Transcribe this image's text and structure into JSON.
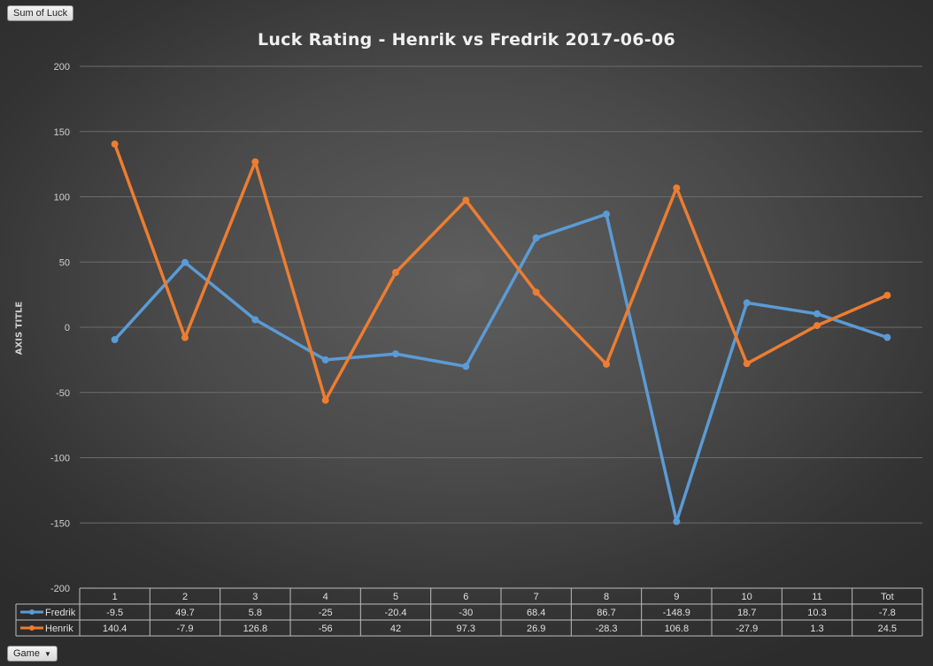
{
  "buttons": {
    "sum_label": "Sum of Luck",
    "game_label": "Game",
    "game_arrow": "▼"
  },
  "colors": {
    "Fredrik": "#5b9bd5",
    "Henrik": "#ed7d31"
  },
  "chart_data": {
    "type": "line",
    "title": "Luck Rating - Henrik vs Fredrik 2017-06-06",
    "xlabel": "",
    "ylabel": "AXIS TITLE",
    "ylim": [
      -200,
      200
    ],
    "yticks": [
      200,
      150,
      100,
      50,
      0,
      -50,
      -100,
      -150,
      -200
    ],
    "grid": true,
    "legend": "data-table",
    "categories": [
      "1",
      "2",
      "3",
      "4",
      "5",
      "6",
      "7",
      "8",
      "9",
      "10",
      "11",
      "Tot"
    ],
    "series": [
      {
        "name": "Fredrik",
        "values": [
          -9.5,
          49.7,
          5.8,
          -25,
          -20.4,
          -30,
          68.4,
          86.7,
          -148.9,
          18.7,
          10.3,
          -7.8
        ]
      },
      {
        "name": "Henrik",
        "values": [
          140.4,
          -7.9,
          126.8,
          -56,
          42,
          97.3,
          26.9,
          -28.3,
          106.8,
          -27.9,
          1.3,
          24.5
        ]
      }
    ]
  }
}
